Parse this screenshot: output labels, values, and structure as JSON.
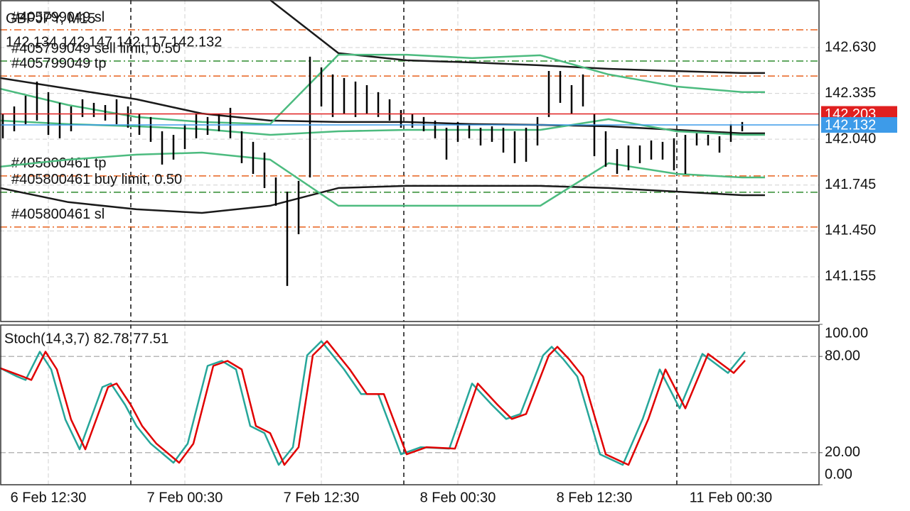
{
  "chart_data": [
    {
      "type": "ohlc",
      "title": "GBPJPY, M15",
      "ohlc_text": "142.134 142.147 142.117 142.132",
      "xlim": [
        0,
        288
      ],
      "ylim": [
        140.867,
        142.936
      ],
      "yticks": [
        {
          "value": 142.63,
          "label": "142.630"
        },
        {
          "value": 142.335,
          "label": "142.335"
        },
        {
          "value": 142.04,
          "label": "142.040"
        },
        {
          "value": 141.745,
          "label": "141.745"
        },
        {
          "value": 141.45,
          "label": "141.450"
        },
        {
          "value": 141.155,
          "label": "141.155"
        }
      ],
      "grid": true,
      "color": "#000000",
      "x": [
        1,
        5,
        9,
        13,
        17,
        21,
        25,
        29,
        33,
        37,
        41,
        45,
        49,
        53,
        57,
        61,
        65,
        69,
        73,
        77,
        81,
        85,
        89,
        93,
        97,
        101,
        105,
        109,
        113,
        117,
        121,
        125,
        129,
        133,
        137,
        141,
        145,
        149,
        153,
        157,
        161,
        165,
        169,
        173,
        177,
        181,
        185,
        189,
        193,
        197,
        201,
        205,
        209,
        213,
        217,
        221,
        225,
        229,
        233,
        237,
        241,
        245,
        249,
        253,
        257,
        261
      ],
      "high": [
        142.205,
        142.251,
        142.32,
        142.411,
        142.343,
        142.274,
        142.251,
        142.297,
        142.274,
        142.26,
        142.297,
        142.251,
        142.205,
        142.183,
        142.091,
        142.068,
        142.137,
        142.205,
        142.183,
        142.205,
        142.242,
        142.091,
        142.023,
        141.954,
        141.794,
        141.703,
        141.772,
        142.571,
        142.502,
        142.457,
        142.434,
        142.411,
        142.388,
        142.343,
        142.297,
        142.228,
        142.205,
        142.183,
        142.16,
        142.114,
        142.151,
        142.137,
        142.114,
        142.123,
        142.114,
        142.091,
        142.114,
        142.183,
        142.479,
        142.479,
        142.388,
        142.457,
        142.205,
        142.091,
        141.977,
        142.0,
        142.0,
        142.032,
        142.023,
        142.046,
        142.068,
        142.078,
        142.068,
        142.059,
        142.137,
        142.151
      ],
      "low": [
        142.046,
        142.091,
        142.137,
        142.16,
        142.068,
        142.046,
        142.091,
        142.183,
        142.183,
        142.16,
        142.137,
        142.114,
        142.068,
        142.023,
        141.877,
        141.909,
        141.977,
        142.046,
        142.068,
        142.091,
        142.046,
        141.886,
        141.817,
        141.726,
        141.612,
        141.096,
        141.429,
        141.794,
        142.251,
        142.183,
        142.205,
        142.183,
        142.205,
        142.183,
        142.16,
        142.114,
        142.114,
        142.091,
        142.046,
        141.909,
        142.023,
        142.046,
        142.0,
        142.023,
        141.954,
        141.886,
        141.895,
        142.0,
        142.183,
        142.274,
        142.205,
        142.251,
        141.931,
        141.863,
        141.817,
        141.84,
        141.886,
        141.909,
        141.909,
        141.84,
        141.817,
        142.0,
        142.0,
        141.954,
        142.023,
        142.091
      ],
      "series": [
        {
          "color": "#1a1a1a",
          "x": [
            0,
            24,
            48,
            71,
            95,
            119,
            143,
            166,
            190,
            214,
            238,
            261,
            269
          ],
          "values": [
            null,
            null,
            null,
            null,
            142.936,
            142.594,
            142.548,
            142.534,
            142.516,
            142.493,
            142.479,
            142.466,
            142.466
          ]
        },
        {
          "color": "#1a1a1a",
          "x": [
            0,
            24,
            48,
            71,
            95,
            119,
            143,
            166,
            190,
            214,
            238,
            261,
            269
          ],
          "values": [
            142.434,
            142.365,
            142.297,
            142.205,
            142.16,
            142.151,
            142.151,
            142.137,
            142.132,
            142.123,
            142.1,
            142.078,
            142.078
          ]
        },
        {
          "color": "#1a1a1a",
          "x": [
            0,
            24,
            48,
            71,
            95,
            119,
            143,
            166,
            190,
            214,
            238,
            261,
            269
          ],
          "values": [
            141.726,
            141.635,
            141.589,
            141.566,
            141.612,
            141.726,
            141.74,
            141.74,
            141.74,
            141.726,
            141.703,
            141.68,
            141.68
          ]
        },
        {
          "color": "#4cbb7f",
          "x": [
            0,
            24,
            48,
            71,
            95,
            119,
            143,
            166,
            190,
            214,
            238,
            261,
            269
          ],
          "values": [
            142.365,
            142.26,
            142.183,
            142.151,
            142.137,
            142.584,
            142.584,
            142.562,
            142.58,
            142.457,
            142.379,
            142.343,
            142.343
          ]
        },
        {
          "color": "#4cbb7f",
          "x": [
            0,
            24,
            48,
            71,
            95,
            119,
            143,
            166,
            190,
            214,
            238,
            261,
            269
          ],
          "values": [
            142.16,
            142.137,
            142.123,
            142.105,
            142.068,
            142.091,
            142.1,
            142.1,
            142.1,
            142.169,
            142.091,
            142.068,
            142.068
          ]
        },
        {
          "color": "#4cbb7f",
          "x": [
            0,
            24,
            48,
            71,
            95,
            119,
            143,
            166,
            190,
            214,
            238,
            261,
            269
          ],
          "values": [
            141.863,
            141.909,
            141.941,
            141.954,
            141.909,
            141.612,
            141.612,
            141.612,
            141.612,
            141.886,
            141.817,
            141.794,
            141.794
          ]
        }
      ],
      "orders": [
        {
          "label": "#405799049 sl",
          "value": 142.744,
          "color": "#e8601c"
        },
        {
          "label": "#405799049 sell limit, 0.50",
          "value": 142.543,
          "color": "#2e8b2e"
        },
        {
          "label": "#405799049 tp",
          "value": 142.447,
          "color": "#e8601c"
        },
        {
          "label": "#405800461 tp",
          "value": 141.804,
          "color": "#e8601c"
        },
        {
          "label": "#405800461 buy limit, 0.50",
          "value": 141.699,
          "color": "#2e8b2e"
        },
        {
          "label": "#405800461 sl",
          "value": 141.475,
          "color": "#e8601c"
        }
      ],
      "price_tags": [
        {
          "value": 142.203,
          "color": "#e02020"
        },
        {
          "value": 142.132,
          "color": "#3d9be9"
        }
      ],
      "separators": [
        46,
        142,
        238
      ]
    },
    {
      "type": "line",
      "title": "Stoch(14,3,7) 82.78 77.51",
      "xlim": [
        0,
        288
      ],
      "ylim": [
        0,
        100
      ],
      "yticks": [
        {
          "value": 100,
          "label": "100.00"
        },
        {
          "value": 80,
          "label": "80.00"
        },
        {
          "value": 20,
          "label": "20.00"
        },
        {
          "value": 0,
          "label": "0.00"
        }
      ],
      "levels": [
        20,
        80
      ],
      "xticks": [
        {
          "value": 17,
          "label": "6 Feb 12:30"
        },
        {
          "value": 65,
          "label": "7 Feb 00:30"
        },
        {
          "value": 113,
          "label": "7 Feb 12:30"
        },
        {
          "value": 161,
          "label": "8 Feb 00:30"
        },
        {
          "value": 209,
          "label": "8 Feb 12:30"
        },
        {
          "value": 257,
          "label": "11 Feb 00:30"
        }
      ],
      "separators": [
        46,
        142,
        238
      ],
      "series": [
        {
          "color": "#26a69a",
          "x": [
            0,
            6,
            9,
            14,
            18,
            23,
            28,
            36,
            39,
            44,
            48,
            53,
            61,
            66,
            73,
            78,
            83,
            88,
            93,
            98,
            103,
            108,
            113,
            121,
            127,
            133,
            141,
            148,
            158,
            166,
            173,
            178,
            183,
            191,
            194,
            198,
            203,
            211,
            219,
            226,
            232,
            239,
            247,
            256,
            262
          ],
          "values": [
            72.8,
            67.5,
            65.3,
            82.9,
            71.9,
            40.6,
            22.1,
            60.9,
            63.1,
            49.8,
            36.6,
            25.6,
            13.7,
            25.6,
            74.1,
            77.2,
            71.9,
            36.6,
            32.2,
            12.4,
            23.4,
            80.7,
            89.5,
            71.9,
            56.5,
            56.5,
            19.0,
            23.4,
            22.5,
            63.1,
            49.8,
            41.0,
            44.1,
            80.7,
            86.0,
            78.5,
            67.5,
            19.0,
            12.4,
            41.0,
            71.9,
            47.6,
            81.6,
            69.7,
            82.78
          ]
        },
        {
          "color": "#e00000",
          "x": [
            0,
            8,
            11,
            16,
            20,
            25,
            30,
            38,
            41,
            46,
            50,
            55,
            63,
            68,
            75,
            80,
            85,
            90,
            95,
            100,
            105,
            110,
            115,
            123,
            129,
            135,
            143,
            150,
            160,
            168,
            175,
            180,
            185,
            193,
            196,
            200,
            205,
            213,
            221,
            228,
            234,
            241,
            249,
            258,
            262
          ],
          "values": [
            72.8,
            67.5,
            65.3,
            82.9,
            71.9,
            40.6,
            22.1,
            60.9,
            63.1,
            49.8,
            36.6,
            25.6,
            13.7,
            25.6,
            74.1,
            77.2,
            71.9,
            36.6,
            32.2,
            12.4,
            23.4,
            80.7,
            89.5,
            71.9,
            56.5,
            56.5,
            19.0,
            23.4,
            22.5,
            63.1,
            49.8,
            41.0,
            44.1,
            80.7,
            86.0,
            78.5,
            67.5,
            19.0,
            12.4,
            41.0,
            71.9,
            47.6,
            81.6,
            69.7,
            77.51
          ]
        }
      ]
    }
  ]
}
